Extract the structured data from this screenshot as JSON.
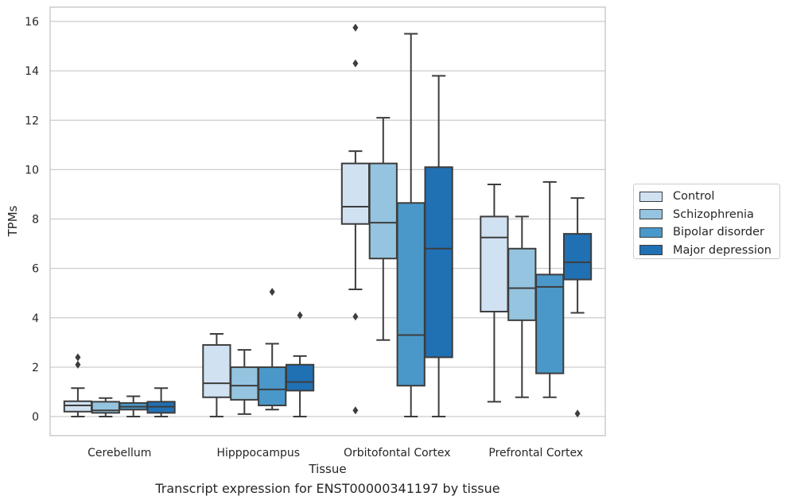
{
  "chart_data": {
    "type": "box",
    "caption": "Transcript expression for ENST00000341197 by tissue",
    "xlabel": "Tissue",
    "ylabel": "TPMs",
    "ylim": [
      -0.75,
      16.6
    ],
    "yticks": [
      0,
      2,
      4,
      6,
      8,
      10,
      12,
      14,
      16
    ],
    "grid": true,
    "legend_position": "right",
    "categories": [
      "Cerebellum",
      "Hipppocampus",
      "Orbitofontal Cortex",
      "Prefrontal Cortex"
    ],
    "series": [
      {
        "name": "Control",
        "color": "#d0e1f2",
        "boxes": [
          {
            "q1": 0.2,
            "median": 0.45,
            "q3": 0.62,
            "whisker_low": 0.0,
            "whisker_high": 1.15,
            "outliers": [
              2.1,
              2.4
            ]
          },
          {
            "q1": 0.78,
            "median": 1.35,
            "q3": 2.9,
            "whisker_low": 0.0,
            "whisker_high": 3.35,
            "outliers": []
          },
          {
            "q1": 7.8,
            "median": 8.5,
            "q3": 10.25,
            "whisker_low": 5.15,
            "whisker_high": 10.75,
            "outliers": [
              4.05,
              0.25,
              14.3,
              15.75
            ]
          },
          {
            "q1": 4.25,
            "median": 7.25,
            "q3": 8.1,
            "whisker_low": 0.6,
            "whisker_high": 9.4,
            "outliers": []
          }
        ]
      },
      {
        "name": "Schizophrenia",
        "color": "#94c4df",
        "boxes": [
          {
            "q1": 0.15,
            "median": 0.25,
            "q3": 0.6,
            "whisker_low": 0.0,
            "whisker_high": 0.75,
            "outliers": []
          },
          {
            "q1": 0.68,
            "median": 1.25,
            "q3": 2.0,
            "whisker_low": 0.1,
            "whisker_high": 2.7,
            "outliers": []
          },
          {
            "q1": 6.4,
            "median": 7.85,
            "q3": 10.25,
            "whisker_low": 3.1,
            "whisker_high": 12.1,
            "outliers": []
          },
          {
            "q1": 3.9,
            "median": 5.2,
            "q3": 6.8,
            "whisker_low": 0.78,
            "whisker_high": 8.1,
            "outliers": []
          }
        ]
      },
      {
        "name": "Bipolar disorder",
        "color": "#4a98c9",
        "boxes": [
          {
            "q1": 0.28,
            "median": 0.4,
            "q3": 0.55,
            "whisker_low": 0.0,
            "whisker_high": 0.82,
            "outliers": []
          },
          {
            "q1": 0.45,
            "median": 1.1,
            "q3": 2.0,
            "whisker_low": 0.28,
            "whisker_high": 2.95,
            "outliers": [
              5.05
            ]
          },
          {
            "q1": 1.25,
            "median": 3.3,
            "q3": 8.65,
            "whisker_low": 0.0,
            "whisker_high": 15.5,
            "outliers": []
          },
          {
            "q1": 1.75,
            "median": 5.25,
            "q3": 5.75,
            "whisker_low": 0.78,
            "whisker_high": 9.5,
            "outliers": []
          }
        ]
      },
      {
        "name": "Major depression",
        "color": "#2070b4",
        "boxes": [
          {
            "q1": 0.15,
            "median": 0.4,
            "q3": 0.6,
            "whisker_low": 0.0,
            "whisker_high": 1.15,
            "outliers": []
          },
          {
            "q1": 1.05,
            "median": 1.4,
            "q3": 2.1,
            "whisker_low": 0.0,
            "whisker_high": 2.45,
            "outliers": [
              4.1
            ]
          },
          {
            "q1": 2.4,
            "median": 6.8,
            "q3": 10.1,
            "whisker_low": 0.0,
            "whisker_high": 13.8,
            "outliers": []
          },
          {
            "q1": 5.55,
            "median": 6.25,
            "q3": 7.4,
            "whisker_low": 4.2,
            "whisker_high": 8.85,
            "outliers": [
              0.12
            ]
          }
        ]
      }
    ]
  }
}
